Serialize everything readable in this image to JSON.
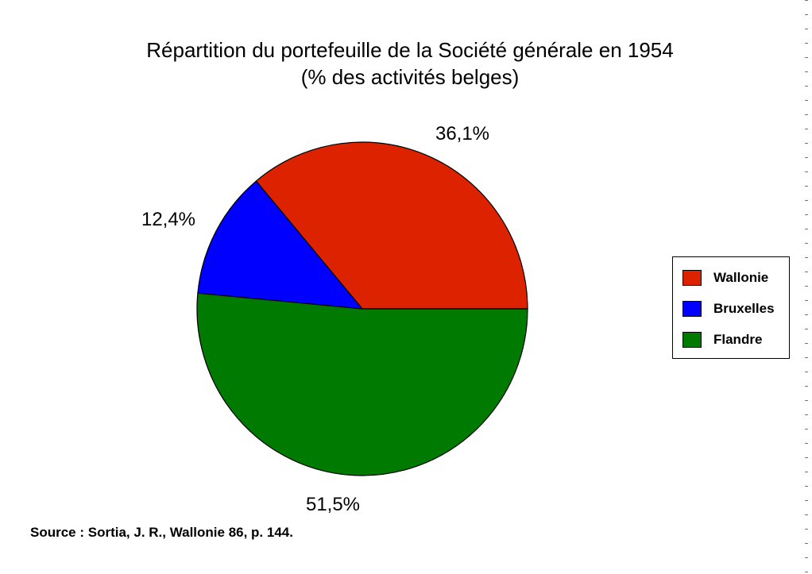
{
  "title_line1": "Répartition du portefeuille de la Société générale en 1954",
  "title_line2": "(% des activités belges)",
  "source": "Source : Sortia, J. R., Wallonie 86, p. 144.",
  "chart_data": {
    "type": "pie",
    "title": "Répartition du portefeuille de la Société générale en 1954",
    "subtitle": "(% des activités belges)",
    "legend_position": "right",
    "slices": [
      {
        "name": "Wallonie",
        "value": 36.1,
        "label": "36,1%",
        "color": "#dd2200"
      },
      {
        "name": "Bruxelles",
        "value": 12.4,
        "label": "12,4%",
        "color": "#0000ff"
      },
      {
        "name": "Flandre",
        "value": 51.5,
        "label": "51,5%",
        "color": "#007a00"
      }
    ]
  }
}
